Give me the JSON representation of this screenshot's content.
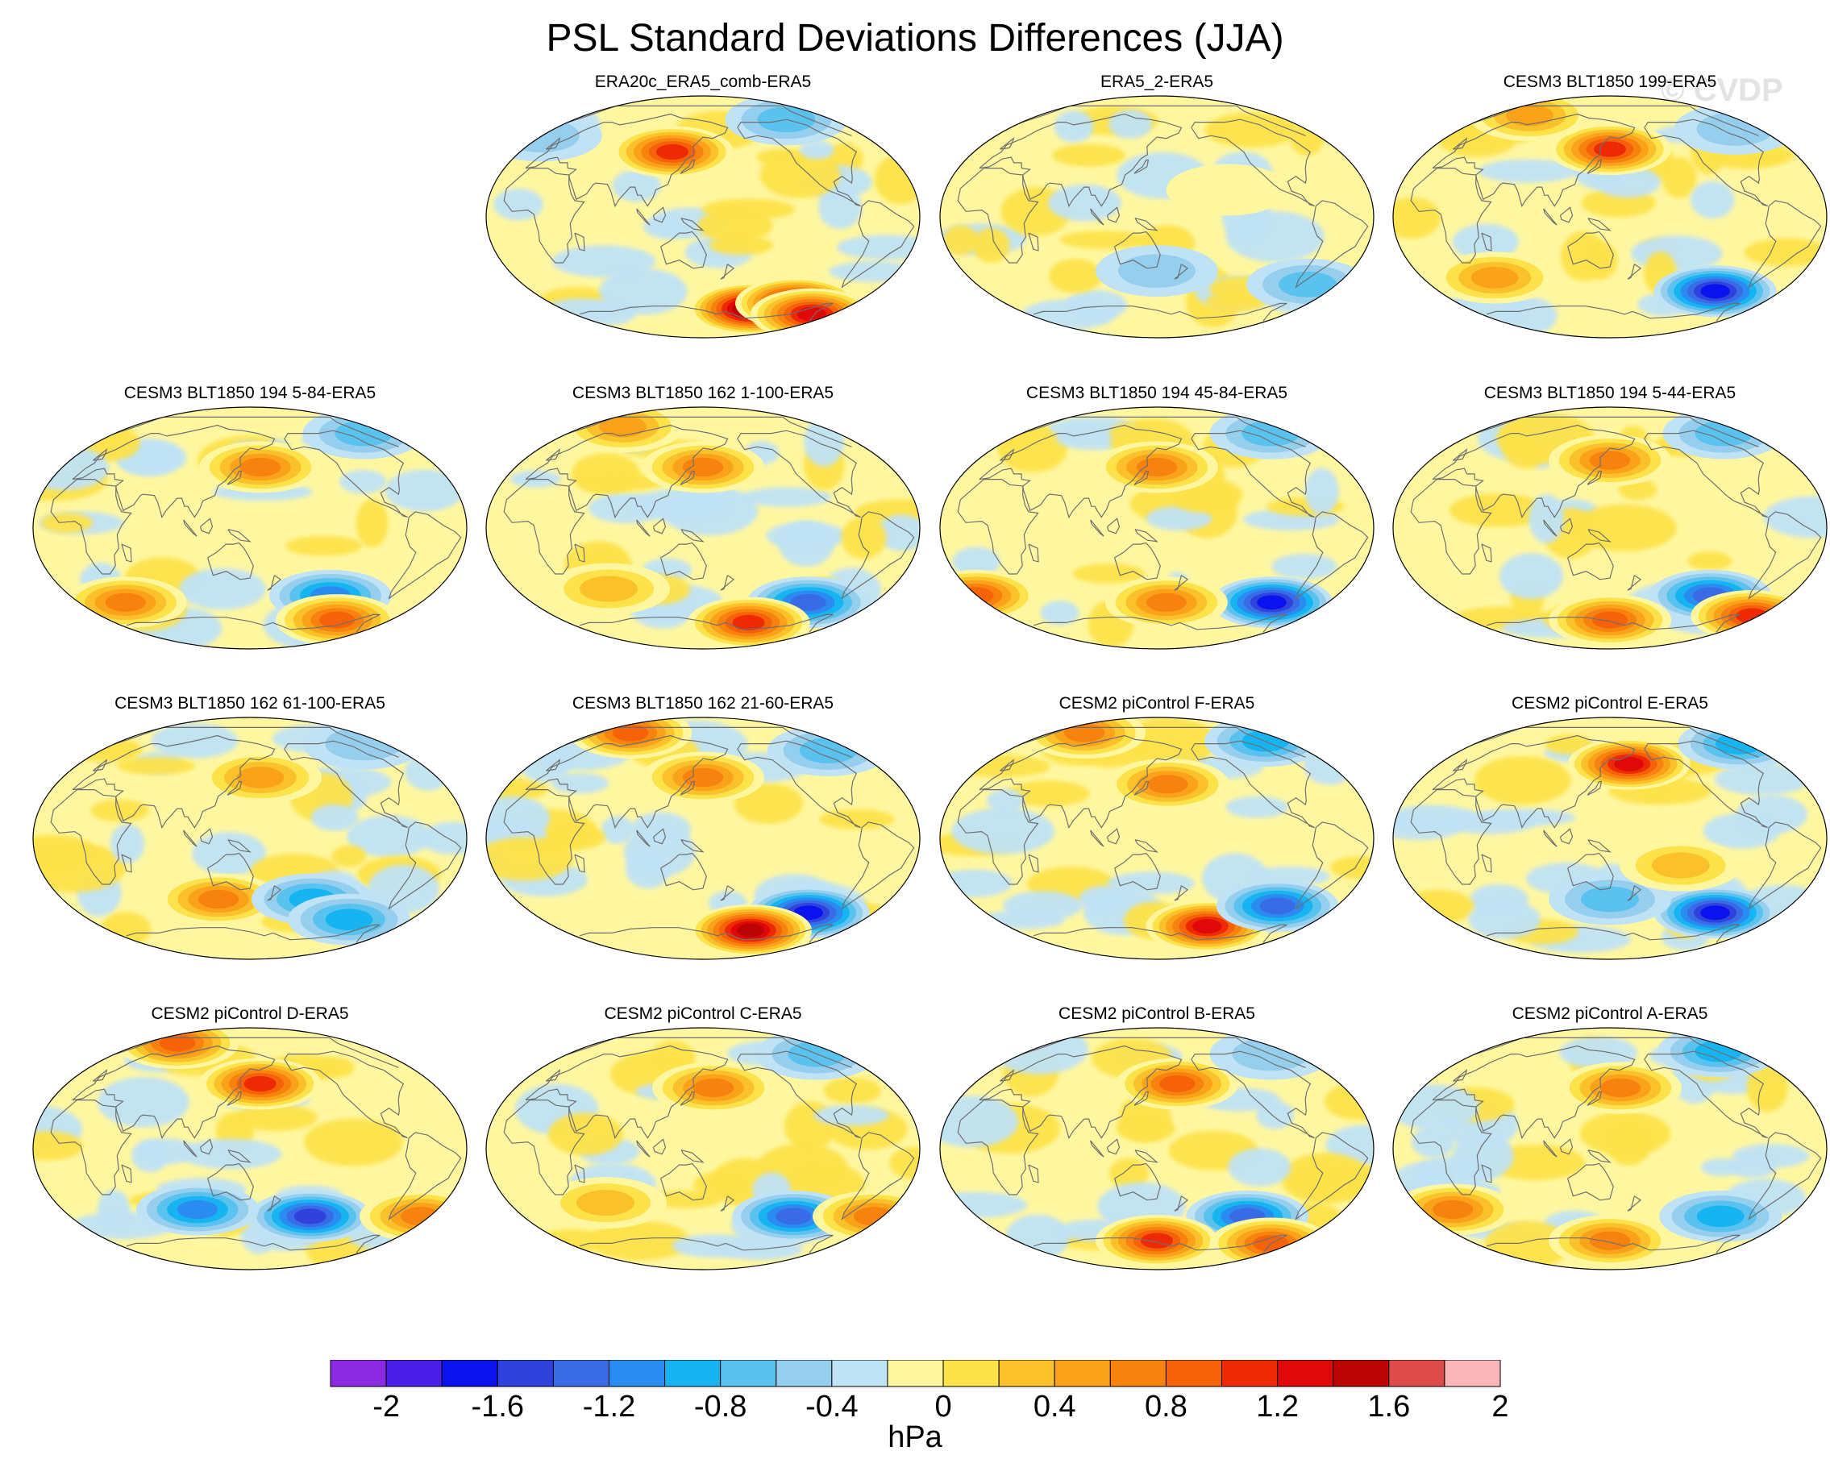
{
  "figure": {
    "title": "PSL Standard Deviations Differences (JJA)",
    "watermark": "© CVDP"
  },
  "chart_data": {
    "type": "heatmap",
    "projection": "Robinson (Pacific-centred)",
    "variable": "PSL",
    "season": "JJA",
    "panels": [
      {
        "title": "ERA20c_ERA5_comb-ERA5",
        "hotspots": [
          {
            "lon": -150,
            "lat": -68,
            "v": 2.0
          },
          {
            "lon": -100,
            "lat": -64,
            "v": 1.8
          },
          {
            "lon": -60,
            "lat": -72,
            "v": 1.6
          },
          {
            "lon": 120,
            "lat": 48,
            "v": 1.4
          },
          {
            "lon": -95,
            "lat": 72,
            "v": -0.6
          },
          {
            "lon": -30,
            "lat": 60,
            "v": -0.4
          }
        ]
      },
      {
        "title": "ERA5_2-ERA5",
        "hotspots": [
          {
            "lon": -60,
            "lat": -50,
            "v": -0.5
          },
          {
            "lon": 150,
            "lat": -40,
            "v": -0.4
          },
          {
            "lon": -150,
            "lat": 20,
            "v": 0.3
          }
        ]
      },
      {
        "title": "CESM3 BLT1850 199-ERA5",
        "hotspots": [
          {
            "lon": 150,
            "lat": 50,
            "v": 1.4
          },
          {
            "lon": -100,
            "lat": -55,
            "v": -1.6
          },
          {
            "lon": 30,
            "lat": 75,
            "v": 0.8
          },
          {
            "lon": -60,
            "lat": 65,
            "v": -0.4
          },
          {
            "lon": 40,
            "lat": -45,
            "v": 0.8
          }
        ]
      },
      {
        "title": "CESM3 BLT1850 194 5-84-ERA5",
        "hotspots": [
          {
            "lon": 160,
            "lat": 45,
            "v": 1.0
          },
          {
            "lon": -130,
            "lat": -50,
            "v": -1.0
          },
          {
            "lon": -60,
            "lat": 70,
            "v": -0.6
          },
          {
            "lon": 20,
            "lat": -55,
            "v": 1.0
          },
          {
            "lon": -100,
            "lat": -68,
            "v": 1.2
          }
        ]
      },
      {
        "title": "CESM3 BLT1850 162 1-100-ERA5",
        "hotspots": [
          {
            "lon": 150,
            "lat": 45,
            "v": 1.0
          },
          {
            "lon": -100,
            "lat": -55,
            "v": -1.2
          },
          {
            "lon": 30,
            "lat": 75,
            "v": 0.8
          },
          {
            "lon": -150,
            "lat": -70,
            "v": 1.4
          },
          {
            "lon": 60,
            "lat": -45,
            "v": 0.6
          }
        ]
      },
      {
        "title": "CESM3 BLT1850 194 45-84-ERA5",
        "hotspots": [
          {
            "lon": 150,
            "lat": 45,
            "v": 1.0
          },
          {
            "lon": -90,
            "lat": -55,
            "v": -1.6
          },
          {
            "lon": -30,
            "lat": -50,
            "v": 1.2
          },
          {
            "lon": 160,
            "lat": -55,
            "v": 1.0
          },
          {
            "lon": -60,
            "lat": 70,
            "v": -0.6
          }
        ]
      },
      {
        "title": "CESM3 BLT1850 194 5-44-ERA5",
        "hotspots": [
          {
            "lon": 150,
            "lat": 50,
            "v": 1.0
          },
          {
            "lon": -110,
            "lat": -50,
            "v": -1.2
          },
          {
            "lon": -60,
            "lat": 70,
            "v": -0.6
          },
          {
            "lon": -40,
            "lat": -65,
            "v": 1.4
          },
          {
            "lon": 150,
            "lat": -68,
            "v": 1.2
          }
        ]
      },
      {
        "title": "CESM3 BLT1850 162 61-100-ERA5",
        "hotspots": [
          {
            "lon": 160,
            "lat": 45,
            "v": 0.8
          },
          {
            "lon": 120,
            "lat": -45,
            "v": 1.0
          },
          {
            "lon": -150,
            "lat": -45,
            "v": -0.8
          },
          {
            "lon": -60,
            "lat": 70,
            "v": -0.4
          },
          {
            "lon": -100,
            "lat": -60,
            "v": -0.8
          }
        ]
      },
      {
        "title": "CESM3 BLT1850 162 21-60-ERA5",
        "hotspots": [
          {
            "lon": 150,
            "lat": 45,
            "v": 1.0
          },
          {
            "lon": -100,
            "lat": -55,
            "v": -1.6
          },
          {
            "lon": -150,
            "lat": -68,
            "v": 1.8
          },
          {
            "lon": 30,
            "lat": 78,
            "v": 1.2
          },
          {
            "lon": -60,
            "lat": 65,
            "v": -0.6
          }
        ]
      },
      {
        "title": "CESM2 piControl F-ERA5",
        "hotspots": [
          {
            "lon": 160,
            "lat": 40,
            "v": 1.0
          },
          {
            "lon": -150,
            "lat": -65,
            "v": 1.6
          },
          {
            "lon": -90,
            "lat": -50,
            "v": -1.2
          },
          {
            "lon": -60,
            "lat": 72,
            "v": -0.8
          },
          {
            "lon": 30,
            "lat": 78,
            "v": 1.0
          }
        ]
      },
      {
        "title": "CESM2 piControl E-ERA5",
        "hotspots": [
          {
            "lon": 170,
            "lat": 55,
            "v": 1.6
          },
          {
            "lon": -100,
            "lat": -55,
            "v": -1.6
          },
          {
            "lon": -40,
            "lat": 70,
            "v": -0.8
          },
          {
            "lon": 150,
            "lat": -45,
            "v": -0.6
          },
          {
            "lon": -150,
            "lat": -20,
            "v": 0.6
          }
        ]
      },
      {
        "title": "CESM2 piControl D-ERA5",
        "hotspots": [
          {
            "lon": 160,
            "lat": 48,
            "v": 1.4
          },
          {
            "lon": 30,
            "lat": 78,
            "v": 1.2
          },
          {
            "lon": -150,
            "lat": -50,
            "v": -1.4
          },
          {
            "lon": 100,
            "lat": -45,
            "v": -1.0
          },
          {
            "lon": -40,
            "lat": -50,
            "v": 1.0
          }
        ]
      },
      {
        "title": "CESM2 piControl C-ERA5",
        "hotspots": [
          {
            "lon": 160,
            "lat": 45,
            "v": 1.0
          },
          {
            "lon": -120,
            "lat": -50,
            "v": -1.2
          },
          {
            "lon": -40,
            "lat": -50,
            "v": 1.0
          },
          {
            "lon": -60,
            "lat": 70,
            "v": -0.6
          },
          {
            "lon": 60,
            "lat": -40,
            "v": 0.6
          }
        ]
      },
      {
        "title": "CESM2 piControl B-ERA5",
        "hotspots": [
          {
            "lon": 170,
            "lat": 48,
            "v": 1.2
          },
          {
            "lon": -120,
            "lat": -50,
            "v": -1.2
          },
          {
            "lon": 150,
            "lat": -68,
            "v": 1.4
          },
          {
            "lon": -60,
            "lat": -70,
            "v": 1.2
          },
          {
            "lon": -60,
            "lat": 70,
            "v": -0.4
          }
        ]
      },
      {
        "title": "CESM2 piControl A-ERA5",
        "hotspots": [
          {
            "lon": 160,
            "lat": 45,
            "v": 1.0
          },
          {
            "lon": -60,
            "lat": 72,
            "v": -0.8
          },
          {
            "lon": -100,
            "lat": -50,
            "v": -0.8
          },
          {
            "lon": 0,
            "lat": -45,
            "v": 1.0
          },
          {
            "lon": 150,
            "lat": -68,
            "v": 1.0
          }
        ]
      }
    ],
    "colorbar": {
      "levels": [
        -2,
        -1.8,
        -1.6,
        -1.4,
        -1.2,
        -1,
        -0.8,
        -0.6,
        -0.4,
        -0.2,
        0,
        0.2,
        0.4,
        0.6,
        0.8,
        1,
        1.2,
        1.4,
        1.6,
        1.8,
        2
      ],
      "tick_labels": [
        "-2",
        "-1.6",
        "-1.2",
        "-0.8",
        "-0.4",
        "0",
        "0.4",
        "0.8",
        "1.2",
        "1.6",
        "2"
      ],
      "unit": "hPa",
      "colors": [
        "#8a2be2",
        "#4a1ee6",
        "#0a12ee",
        "#2f43dc",
        "#3a6be6",
        "#2a8cf0",
        "#16b4f0",
        "#5ac2ee",
        "#96cfee",
        "#bfe2f5",
        "#fff7a0",
        "#fde24a",
        "#fbc12a",
        "#f9a21a",
        "#f8820e",
        "#f56208",
        "#ee2a04",
        "#e00808",
        "#bb0404",
        "#de4c4a",
        "#fab6b8"
      ]
    }
  }
}
